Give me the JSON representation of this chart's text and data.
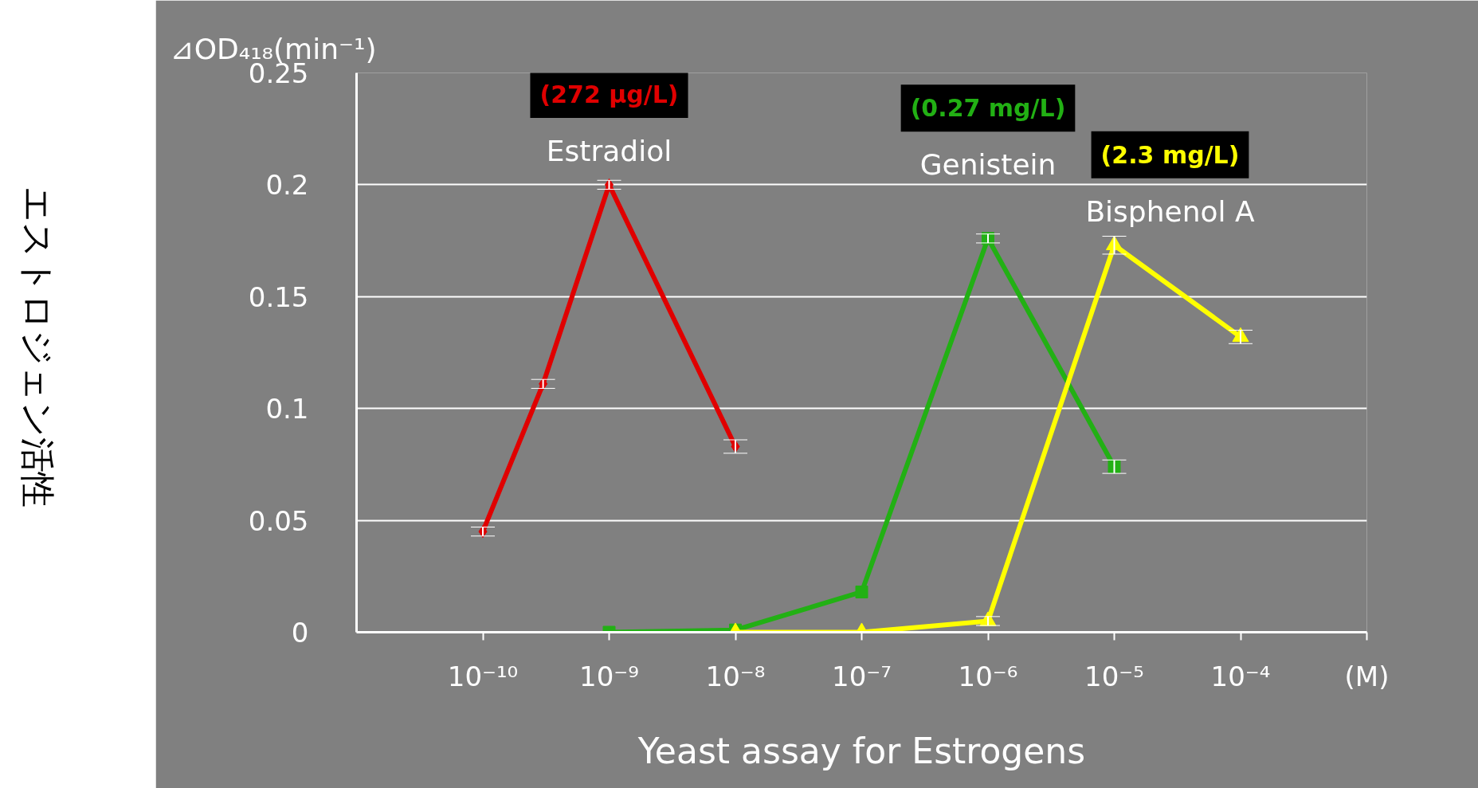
{
  "chart_data": {
    "type": "line",
    "xlabel": "Yeast assay for Estrogens",
    "ylabel": "⊿OD₄₁₈(min⁻¹)",
    "log": "x",
    "xlim": [
      1e-11,
      0.001
    ],
    "xticks": [
      {
        "value": 1e-10,
        "label": "10⁻¹⁰"
      },
      {
        "value": 1e-09,
        "label": "10⁻⁹"
      },
      {
        "value": 1e-08,
        "label": "10⁻⁸"
      },
      {
        "value": 1e-07,
        "label": "10⁻⁷"
      },
      {
        "value": 1e-06,
        "label": "10⁻⁶"
      },
      {
        "value": 1e-05,
        "label": "10⁻⁵"
      },
      {
        "value": 0.0001,
        "label": "10⁻⁴"
      }
    ],
    "ylim": [
      0,
      0.25
    ],
    "yticks": [
      0,
      0.05,
      0.1,
      0.15,
      0.2,
      0.25
    ],
    "grid": "y",
    "legend": false,
    "series": [
      {
        "name": "Estradiol",
        "color": "#e00000",
        "marker": "diamond",
        "x": [
          1e-10,
          3e-10,
          1e-09,
          1e-08
        ],
        "values": [
          0.045,
          0.111,
          0.2,
          0.083
        ],
        "errors": [
          0.002,
          0.002,
          0.002,
          0.003
        ]
      },
      {
        "name": "Genistein",
        "color": "#22b014",
        "marker": "square",
        "x": [
          1e-09,
          1e-08,
          1e-07,
          1e-06,
          1e-05
        ],
        "values": [
          0,
          0.001,
          0.018,
          0.176,
          0.074
        ],
        "errors": [
          null,
          null,
          null,
          0.002,
          0.003
        ]
      },
      {
        "name": "Bisphenol A",
        "color": "#ffff00",
        "marker": "triangle",
        "x": [
          1e-08,
          1e-07,
          1e-06,
          1e-05,
          0.0001
        ],
        "values": [
          0,
          0,
          0.005,
          0.173,
          0.132
        ],
        "errors": [
          null,
          null,
          0.002,
          0.004,
          0.003
        ]
      }
    ],
    "annotations": [
      "エストロジェン活性",
      "(M)",
      "(272 µg/L)",
      "(0.27 mg/L)",
      "(2.3 mg/L)"
    ]
  }
}
